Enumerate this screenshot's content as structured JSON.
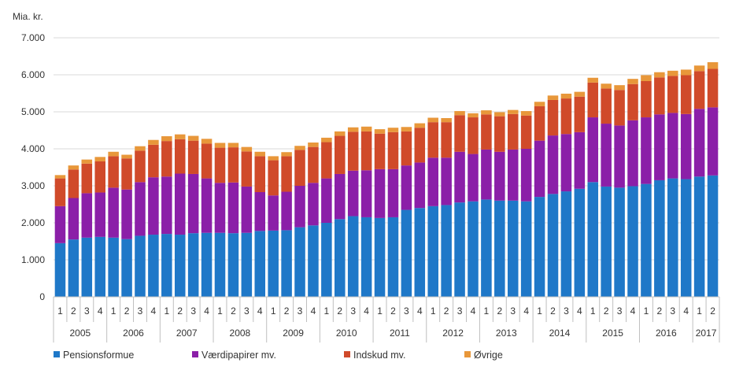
{
  "chart_data": {
    "type": "bar",
    "stacked": true,
    "ylabel": "Mia. kr.",
    "ylim": [
      0,
      7000
    ],
    "yticks": [
      "0",
      "1.000",
      "2.000",
      "3.000",
      "4.000",
      "5.000",
      "6.000",
      "7.000"
    ],
    "ytick_values": [
      0,
      1000,
      2000,
      3000,
      4000,
      5000,
      6000,
      7000
    ],
    "grid": true,
    "legend_position": "bottom-left",
    "quarter_labels": [
      "1",
      "2",
      "3",
      "4",
      "1",
      "2",
      "3",
      "4",
      "1",
      "2",
      "3",
      "4",
      "1",
      "2",
      "3",
      "4",
      "1",
      "2",
      "3",
      "4",
      "1",
      "2",
      "3",
      "4",
      "1",
      "2",
      "3",
      "4",
      "1",
      "2",
      "3",
      "4",
      "1",
      "2",
      "3",
      "4",
      "1",
      "2",
      "3",
      "4",
      "1",
      "2",
      "3",
      "4",
      "1",
      "2",
      "3",
      "4",
      "1",
      "2"
    ],
    "years": [
      {
        "label": "2005",
        "quarters": 4
      },
      {
        "label": "2006",
        "quarters": 4
      },
      {
        "label": "2007",
        "quarters": 4
      },
      {
        "label": "2008",
        "quarters": 4
      },
      {
        "label": "2009",
        "quarters": 4
      },
      {
        "label": "2010",
        "quarters": 4
      },
      {
        "label": "2011",
        "quarters": 4
      },
      {
        "label": "2012",
        "quarters": 4
      },
      {
        "label": "2013",
        "quarters": 4
      },
      {
        "label": "2014",
        "quarters": 4
      },
      {
        "label": "2015",
        "quarters": 4
      },
      {
        "label": "2016",
        "quarters": 4
      },
      {
        "label": "2017",
        "quarters": 2
      }
    ],
    "series": [
      {
        "name": "Pensionsformue",
        "color": "#1f78c8",
        "values": [
          1450,
          1550,
          1600,
          1620,
          1600,
          1560,
          1650,
          1680,
          1700,
          1680,
          1720,
          1730,
          1730,
          1720,
          1730,
          1780,
          1790,
          1800,
          1880,
          1930,
          2000,
          2100,
          2180,
          2150,
          2130,
          2150,
          2350,
          2400,
          2450,
          2480,
          2550,
          2580,
          2630,
          2600,
          2600,
          2580,
          2700,
          2780,
          2850,
          2920,
          3100,
          2980,
          2950,
          2990,
          3050,
          3150,
          3200,
          3180,
          3250,
          3280
        ]
      },
      {
        "name": "Værdipapirer mv.",
        "color": "#8b1fa8",
        "values": [
          1000,
          1120,
          1200,
          1200,
          1350,
          1340,
          1450,
          1550,
          1550,
          1650,
          1600,
          1470,
          1350,
          1370,
          1250,
          1050,
          950,
          1040,
          1120,
          1150,
          1200,
          1220,
          1230,
          1270,
          1320,
          1300,
          1200,
          1230,
          1310,
          1280,
          1370,
          1280,
          1350,
          1320,
          1380,
          1420,
          1520,
          1580,
          1550,
          1530,
          1750,
          1700,
          1680,
          1780,
          1800,
          1780,
          1770,
          1760,
          1830,
          1840
        ]
      },
      {
        "name": "Indskud mv.",
        "color": "#d04a2a",
        "values": [
          750,
          770,
          800,
          840,
          850,
          840,
          850,
          880,
          960,
          930,
          900,
          940,
          950,
          950,
          950,
          970,
          950,
          960,
          970,
          970,
          980,
          1030,
          1050,
          1050,
          960,
          1000,
          920,
          940,
          960,
          960,
          990,
          990,
          950,
          960,
          960,
          900,
          930,
          960,
          960,
          960,
          940,
          950,
          960,
          980,
          980,
          1000,
          1000,
          1050,
          1020,
          1040
        ]
      },
      {
        "name": "Øvrige",
        "color": "#e8973a",
        "values": [
          90,
          110,
          110,
          120,
          120,
          100,
          120,
          130,
          130,
          130,
          130,
          130,
          130,
          120,
          120,
          120,
          110,
          110,
          110,
          120,
          120,
          120,
          120,
          130,
          120,
          120,
          120,
          120,
          120,
          110,
          110,
          110,
          110,
          110,
          110,
          120,
          120,
          120,
          130,
          130,
          130,
          130,
          130,
          140,
          160,
          140,
          140,
          150,
          150,
          180
        ]
      }
    ]
  }
}
